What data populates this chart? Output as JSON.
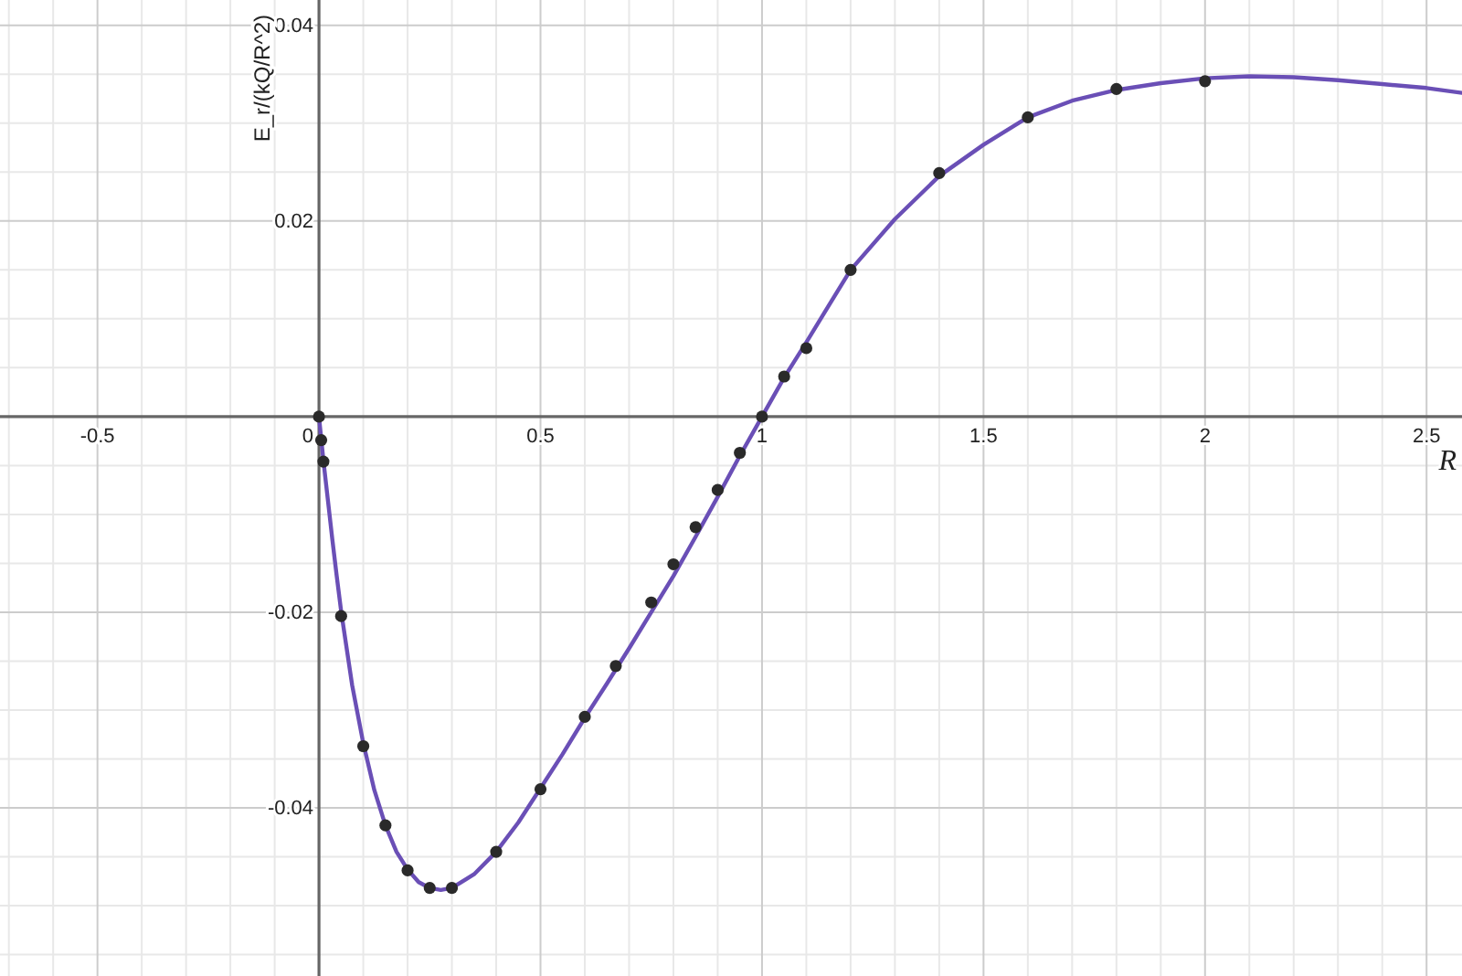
{
  "chart_data": {
    "type": "line",
    "xlabel": "R",
    "ylabel": "E_r/(kQ/R^2)",
    "xlim": [
      -0.72,
      2.58
    ],
    "ylim": [
      -0.0572,
      0.0426
    ],
    "xticks": [
      {
        "value": -0.7,
        "label": null
      },
      {
        "value": -0.6,
        "label": null
      },
      -0.5,
      {
        "value": -0.4,
        "label": null
      },
      {
        "value": -0.3,
        "label": null
      },
      {
        "value": -0.2,
        "label": null
      },
      {
        "value": -0.1,
        "label": null
      },
      0,
      {
        "value": 0.1,
        "label": null
      },
      {
        "value": 0.2,
        "label": null
      },
      {
        "value": 0.3,
        "label": null
      },
      {
        "value": 0.4,
        "label": null
      },
      0.5,
      {
        "value": 0.6,
        "label": null
      },
      {
        "value": 0.7,
        "label": null
      },
      {
        "value": 0.8,
        "label": null
      },
      {
        "value": 0.9,
        "label": null
      },
      1,
      {
        "value": 1.1,
        "label": null
      },
      {
        "value": 1.2,
        "label": null
      },
      {
        "value": 1.3,
        "label": null
      },
      {
        "value": 1.4,
        "label": null
      },
      1.5,
      {
        "value": 1.6,
        "label": null
      },
      {
        "value": 1.7,
        "label": null
      },
      {
        "value": 1.8,
        "label": null
      },
      {
        "value": 1.9,
        "label": null
      },
      2,
      {
        "value": 2.1,
        "label": null
      },
      {
        "value": 2.2,
        "label": null
      },
      {
        "value": 2.3,
        "label": null
      },
      {
        "value": 2.4,
        "label": null
      },
      2.5
    ],
    "yticks": [
      {
        "value": -0.055,
        "label": null
      },
      {
        "value": -0.05,
        "label": null
      },
      {
        "value": -0.045,
        "label": null
      },
      -0.04,
      {
        "value": -0.035,
        "label": null
      },
      {
        "value": -0.03,
        "label": null
      },
      {
        "value": -0.025,
        "label": null
      },
      -0.02,
      {
        "value": -0.015,
        "label": null
      },
      {
        "value": -0.01,
        "label": null
      },
      {
        "value": -0.005,
        "label": null
      },
      {
        "value": 0,
        "label": null
      },
      {
        "value": 0.005,
        "label": null
      },
      {
        "value": 0.01,
        "label": null
      },
      {
        "value": 0.015,
        "label": null
      },
      0.02,
      {
        "value": 0.025,
        "label": null
      },
      {
        "value": 0.03,
        "label": null
      },
      {
        "value": 0.035,
        "label": null
      },
      0.04
    ],
    "grid": true,
    "series": [
      {
        "color": "#6a4fb6",
        "marker": "none",
        "x": [
          0,
          0.01,
          0.02,
          0.03,
          0.04,
          0.05,
          0.075,
          0.1,
          0.125,
          0.15,
          0.175,
          0.2,
          0.225,
          0.25,
          0.275,
          0.3,
          0.35,
          0.4,
          0.45,
          0.5,
          0.55,
          0.6,
          0.65,
          0.7,
          0.75,
          0.8,
          0.85,
          0.9,
          0.95,
          1.0,
          1.05,
          1.1,
          1.15,
          1.2,
          1.3,
          1.4,
          1.5,
          1.6,
          1.7,
          1.8,
          1.9,
          2.0,
          2.1,
          2.2,
          2.3,
          2.4,
          2.5,
          2.58
        ],
        "values": [
          0,
          -0.0045,
          -0.0085,
          -0.0125,
          -0.0163,
          -0.0199,
          -0.0275,
          -0.0334,
          -0.0382,
          -0.0418,
          -0.0445,
          -0.0463,
          -0.0476,
          -0.0482,
          -0.0484,
          -0.0482,
          -0.0468,
          -0.0445,
          -0.0415,
          -0.038,
          -0.0345,
          -0.0308,
          -0.0273,
          -0.0237,
          -0.02,
          -0.0163,
          -0.0123,
          -0.0082,
          -0.004,
          0,
          0.004,
          0.0076,
          0.0113,
          0.015,
          0.0202,
          0.0246,
          0.0278,
          0.0306,
          0.0323,
          0.0334,
          0.0341,
          0.0346,
          0.0348,
          0.0347,
          0.0344,
          0.034,
          0.0336,
          0.0331
        ]
      },
      {
        "type": "scatter",
        "color": "#2a2a2a",
        "marker": "circle",
        "x": [
          0,
          0.005,
          0.01,
          0.05,
          0.1,
          0.15,
          0.2,
          0.25,
          0.3,
          0.4,
          0.5,
          0.6,
          0.67,
          0.75,
          0.8,
          0.85,
          0.9,
          0.95,
          1.0,
          1.05,
          1.1,
          1.2,
          1.4,
          1.6,
          1.8,
          2.0
        ],
        "values": [
          0,
          -0.0024,
          -0.0046,
          -0.0204,
          -0.0337,
          -0.0418,
          -0.0464,
          -0.0482,
          -0.0482,
          -0.0445,
          -0.0381,
          -0.0307,
          -0.0255,
          -0.019,
          -0.0151,
          -0.0113,
          -0.0075,
          -0.0037,
          0,
          0.0041,
          0.007,
          0.015,
          0.0249,
          0.0306,
          0.0335,
          0.0343
        ]
      }
    ]
  }
}
